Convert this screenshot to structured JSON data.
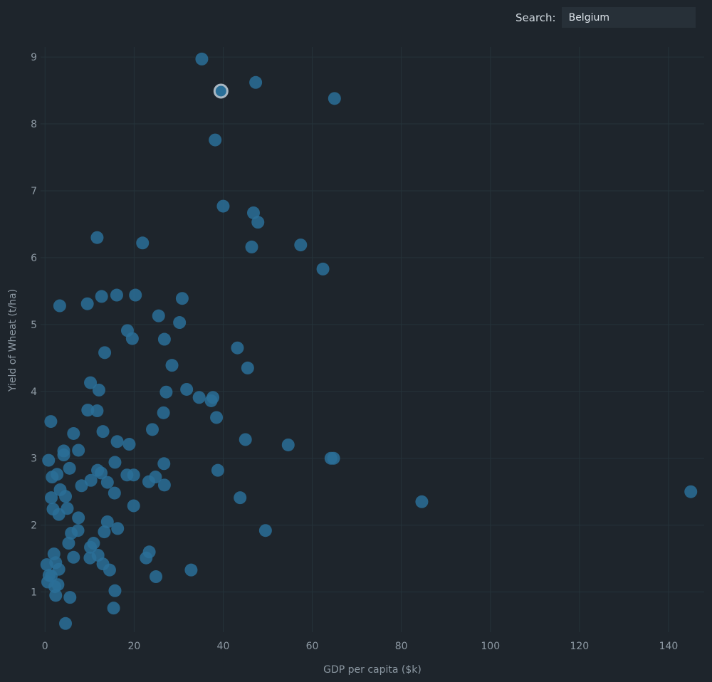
{
  "search": {
    "label": "Search:",
    "value": "Belgium"
  },
  "colors": {
    "background": "#1e252c",
    "point": "#2a6f98",
    "highlight_stroke": "#a9b7c2",
    "grid": "#25333a"
  },
  "chart_data": {
    "type": "scatter",
    "xlabel": "GDP per capita ($k)",
    "ylabel": "Yield of Wheat (t/ha)",
    "xlim": [
      -1,
      148
    ],
    "ylim": [
      0.4,
      9.15
    ],
    "xticks": [
      0,
      20,
      40,
      60,
      80,
      100,
      120,
      140
    ],
    "yticks": [
      1,
      2,
      3,
      4,
      5,
      6,
      7,
      8,
      9
    ],
    "grid": true,
    "highlighted": {
      "label": "Belgium",
      "x": 39.5,
      "y": 8.49
    },
    "points": [
      [
        35.2,
        8.97
      ],
      [
        47.3,
        8.62
      ],
      [
        65.0,
        8.38
      ],
      [
        38.2,
        7.76
      ],
      [
        40.0,
        6.77
      ],
      [
        46.8,
        6.67
      ],
      [
        47.8,
        6.53
      ],
      [
        46.4,
        6.16
      ],
      [
        57.4,
        6.19
      ],
      [
        62.4,
        5.83
      ],
      [
        11.7,
        6.3
      ],
      [
        21.9,
        6.22
      ],
      [
        3.3,
        5.28
      ],
      [
        9.5,
        5.31
      ],
      [
        12.7,
        5.42
      ],
      [
        16.1,
        5.44
      ],
      [
        20.3,
        5.44
      ],
      [
        30.8,
        5.39
      ],
      [
        25.5,
        5.13
      ],
      [
        30.2,
        5.03
      ],
      [
        18.5,
        4.91
      ],
      [
        19.6,
        4.79
      ],
      [
        26.8,
        4.78
      ],
      [
        13.4,
        4.58
      ],
      [
        43.2,
        4.65
      ],
      [
        45.5,
        4.35
      ],
      [
        28.5,
        4.39
      ],
      [
        10.2,
        4.13
      ],
      [
        12.1,
        4.02
      ],
      [
        27.2,
        3.99
      ],
      [
        31.8,
        4.03
      ],
      [
        34.6,
        3.91
      ],
      [
        37.3,
        3.86
      ],
      [
        37.7,
        3.91
      ],
      [
        9.6,
        3.72
      ],
      [
        11.7,
        3.71
      ],
      [
        1.3,
        3.55
      ],
      [
        26.6,
        3.68
      ],
      [
        38.5,
        3.61
      ],
      [
        6.4,
        3.37
      ],
      [
        13.0,
        3.4
      ],
      [
        24.1,
        3.43
      ],
      [
        16.2,
        3.25
      ],
      [
        18.9,
        3.21
      ],
      [
        45.0,
        3.28
      ],
      [
        54.6,
        3.2
      ],
      [
        4.2,
        3.11
      ],
      [
        7.5,
        3.12
      ],
      [
        4.2,
        3.05
      ],
      [
        0.8,
        2.97
      ],
      [
        15.7,
        2.94
      ],
      [
        26.7,
        2.92
      ],
      [
        64.2,
        3.0
      ],
      [
        64.8,
        3.0
      ],
      [
        5.5,
        2.85
      ],
      [
        11.8,
        2.82
      ],
      [
        12.6,
        2.78
      ],
      [
        18.4,
        2.75
      ],
      [
        19.9,
        2.75
      ],
      [
        38.8,
        2.82
      ],
      [
        1.6,
        2.72
      ],
      [
        2.7,
        2.76
      ],
      [
        14.0,
        2.64
      ],
      [
        10.3,
        2.67
      ],
      [
        23.3,
        2.65
      ],
      [
        24.8,
        2.72
      ],
      [
        26.8,
        2.6
      ],
      [
        8.2,
        2.59
      ],
      [
        3.4,
        2.53
      ],
      [
        15.6,
        2.48
      ],
      [
        1.4,
        2.41
      ],
      [
        4.6,
        2.43
      ],
      [
        43.8,
        2.41
      ],
      [
        84.6,
        2.35
      ],
      [
        145.0,
        2.5
      ],
      [
        1.8,
        2.24
      ],
      [
        5.0,
        2.25
      ],
      [
        19.9,
        2.29
      ],
      [
        3.1,
        2.16
      ],
      [
        7.5,
        2.11
      ],
      [
        14.0,
        2.05
      ],
      [
        16.3,
        1.95
      ],
      [
        13.3,
        1.9
      ],
      [
        7.4,
        1.92
      ],
      [
        5.9,
        1.88
      ],
      [
        49.5,
        1.92
      ],
      [
        5.3,
        1.73
      ],
      [
        10.9,
        1.73
      ],
      [
        10.2,
        1.67
      ],
      [
        2.0,
        1.57
      ],
      [
        11.9,
        1.55
      ],
      [
        23.4,
        1.6
      ],
      [
        6.4,
        1.52
      ],
      [
        10.1,
        1.51
      ],
      [
        22.7,
        1.51
      ],
      [
        2.4,
        1.44
      ],
      [
        0.4,
        1.41
      ],
      [
        13.0,
        1.42
      ],
      [
        3.1,
        1.34
      ],
      [
        14.5,
        1.33
      ],
      [
        32.8,
        1.33
      ],
      [
        0.9,
        1.25
      ],
      [
        1.4,
        1.24
      ],
      [
        24.9,
        1.23
      ],
      [
        0.6,
        1.15
      ],
      [
        2.9,
        1.11
      ],
      [
        2.2,
        1.08
      ],
      [
        15.7,
        1.02
      ],
      [
        2.4,
        0.95
      ],
      [
        5.6,
        0.92
      ],
      [
        15.4,
        0.76
      ],
      [
        4.6,
        0.53
      ]
    ]
  }
}
